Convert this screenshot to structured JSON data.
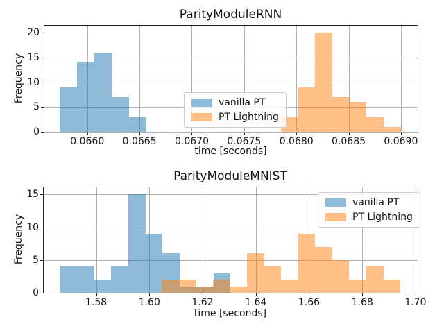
{
  "colors": {
    "background": "#ffffff",
    "grid": "#b0b0b0",
    "spine": "#222222",
    "text": "#151515",
    "vanilla_pt_fill": "rgba(31,119,180,0.5)",
    "pt_lightning_fill": "rgba(255,127,14,0.5)",
    "vanilla_pt_swatch": "#8fbbda",
    "pt_lightning_swatch": "#ffbf86",
    "overlap_mix": "#c79d74"
  },
  "legend": {
    "items": [
      {
        "label": "vanilla PT",
        "color": "#8fbbda"
      },
      {
        "label": "PT Lightning",
        "color": "#ffbf86"
      }
    ]
  },
  "chart_data": [
    {
      "type": "histogram",
      "title": "ParityModuleRNN",
      "xlabel": "time [seconds]",
      "ylabel": "Frequency",
      "xlim": [
        0.06559,
        0.06916
      ],
      "ylim": [
        0,
        21.4
      ],
      "grid": true,
      "legend_position": "center-right",
      "xticks": [
        0.066,
        0.0665,
        0.067,
        0.0675,
        0.068,
        0.0685,
        0.069
      ],
      "xtick_labels": [
        "0.0660",
        "0.0665",
        "0.0670",
        "0.0675",
        "0.0680",
        "0.0685",
        "0.0690"
      ],
      "yticks": [
        0,
        5,
        10,
        15,
        20
      ],
      "ytick_labels": [
        "0",
        "5",
        "10",
        "15",
        "20"
      ],
      "series": [
        {
          "name": "vanilla PT",
          "fill": "rgba(31,119,180,0.5)",
          "bin_edges": [
            0.065735,
            0.065901,
            0.066066,
            0.066232,
            0.066398,
            0.066563
          ],
          "counts": [
            9,
            14,
            16,
            7,
            3
          ]
        },
        {
          "name": "PT Lightning",
          "fill": "rgba(255,127,14,0.5)",
          "bin_edges": [
            0.067854,
            0.068018,
            0.068181,
            0.068345,
            0.068509,
            0.068672,
            0.068836,
            0.069
          ],
          "counts": [
            3,
            9,
            20,
            7,
            6,
            3,
            1
          ]
        }
      ]
    },
    {
      "type": "histogram",
      "title": "ParityModuleMNIST",
      "xlabel": "time [seconds]",
      "ylabel": "Frequency",
      "xlim": [
        1.5603,
        1.7008
      ],
      "ylim": [
        0,
        16.1
      ],
      "grid": true,
      "legend_position": "upper-right",
      "xticks": [
        1.58,
        1.6,
        1.62,
        1.64,
        1.66,
        1.68,
        1.7
      ],
      "xtick_labels": [
        "1.58",
        "1.60",
        "1.62",
        "1.64",
        "1.66",
        "1.68",
        "1.70"
      ],
      "yticks": [
        0,
        5,
        10,
        15
      ],
      "ytick_labels": [
        "0",
        "5",
        "10",
        "15"
      ],
      "series": [
        {
          "name": "vanilla PT",
          "fill": "rgba(31,119,180,0.5)",
          "bin_edges": [
            1.5665,
            1.5729,
            1.5793,
            1.5857,
            1.5921,
            1.5985,
            1.6049,
            1.6113,
            1.6177,
            1.6241,
            1.6305
          ],
          "counts": [
            4,
            4,
            2,
            4,
            15,
            9,
            6,
            1,
            1,
            3
          ]
        },
        {
          "name": "PT Lightning",
          "fill": "rgba(255,127,14,0.5)",
          "bin_edges": [
            1.6047,
            1.6111,
            1.6175,
            1.6239,
            1.6303,
            1.6367,
            1.6431,
            1.6495,
            1.6559,
            1.6623,
            1.6687,
            1.6751,
            1.6815,
            1.6879,
            1.6943
          ],
          "counts": [
            2,
            2,
            1,
            2,
            1,
            6,
            4,
            2,
            9,
            7,
            5,
            2,
            4,
            2
          ]
        }
      ]
    }
  ]
}
